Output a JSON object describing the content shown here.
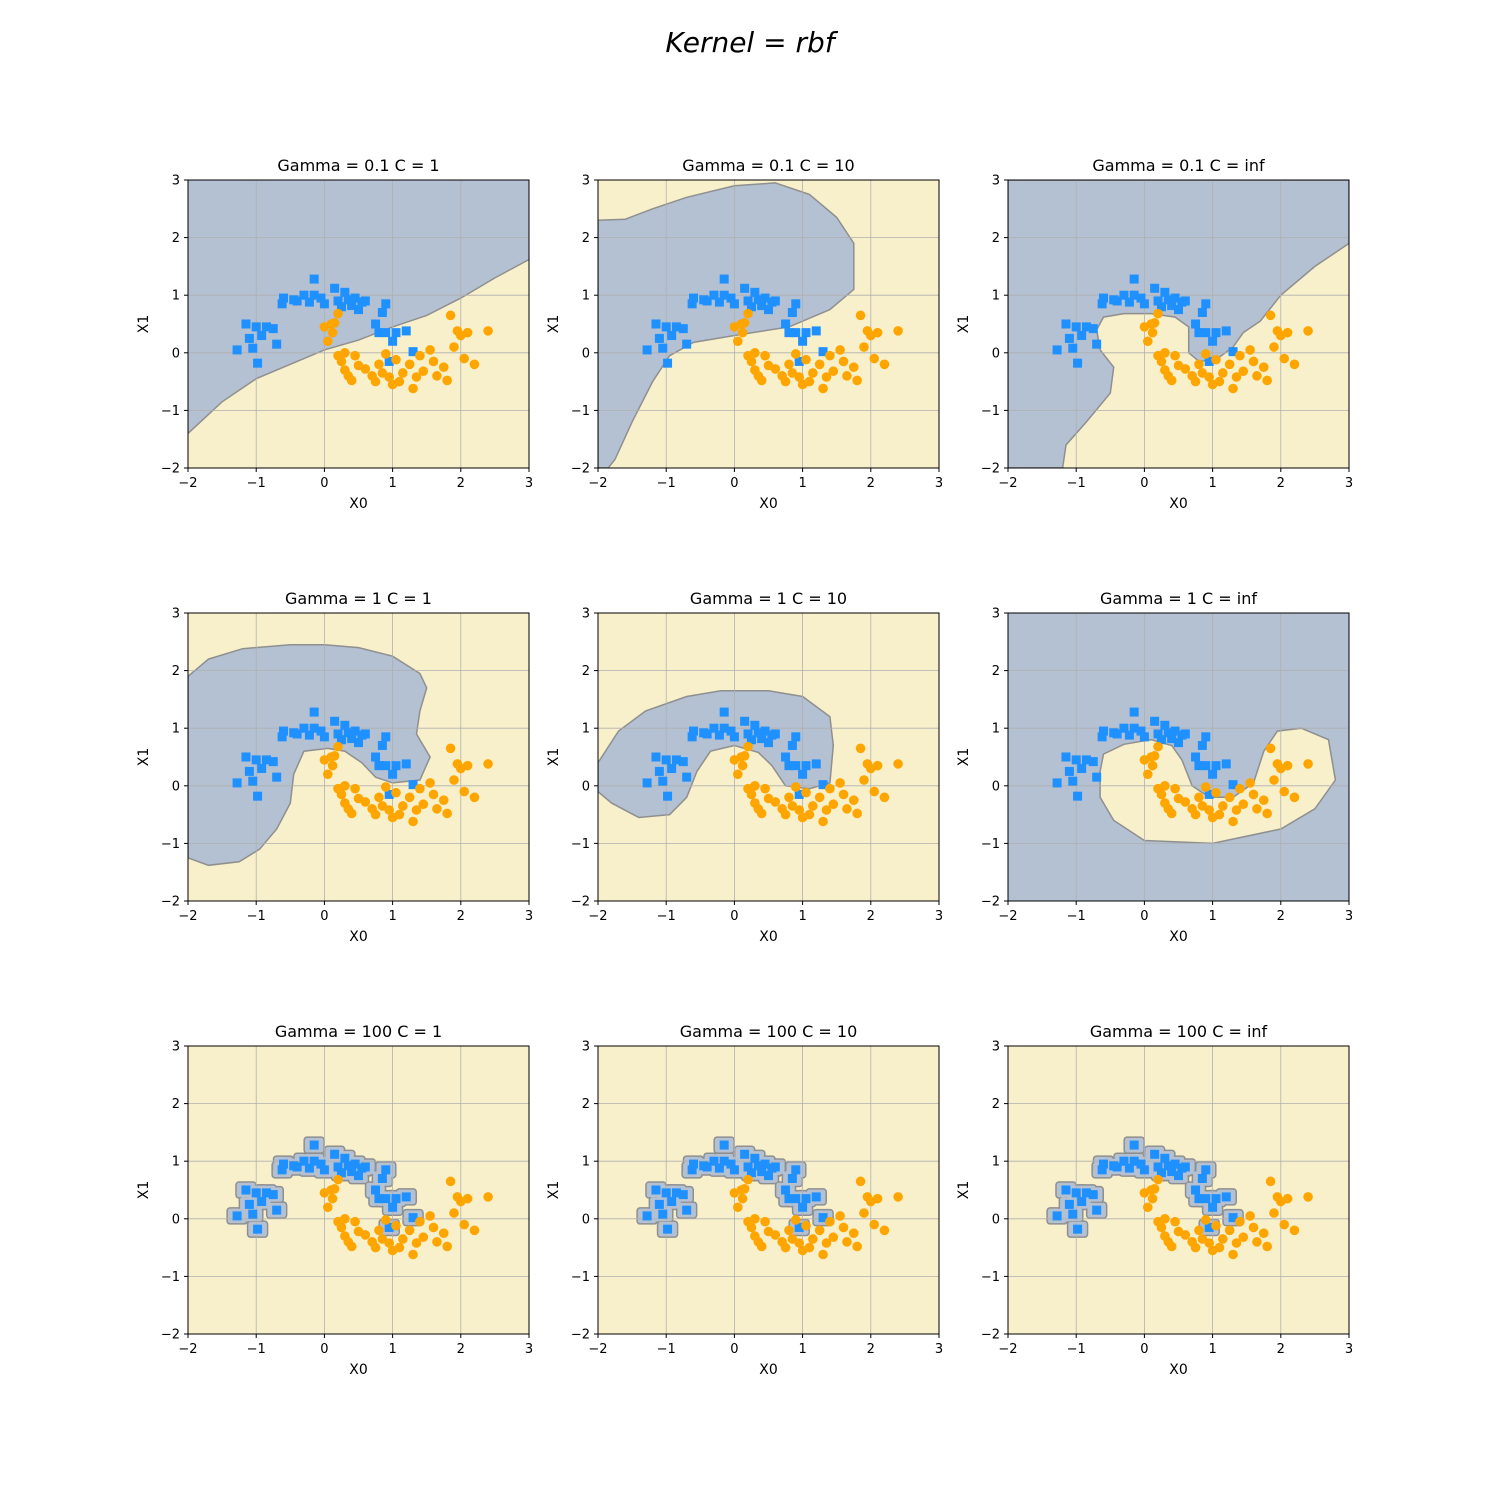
{
  "figure": {
    "suptitle": "Kernel = rbf"
  },
  "colors": {
    "class0_region": "#b3c1d3",
    "class1_region": "#f8f0ca",
    "boundary": "#8f8f8f",
    "class0_marker": "#1e90ff",
    "class1_marker": "#ffa500",
    "grid": "#b0b0b0"
  },
  "chart_data": [
    {
      "type": "scatter",
      "title": "Gamma = 0.1  C = 1",
      "xlabel": "X0",
      "ylabel": "X1",
      "xlim": [
        -2,
        3
      ],
      "ylim": [
        -2,
        3
      ],
      "xticks": [
        "−2",
        "−1",
        "0",
        "1",
        "2",
        "3"
      ],
      "yticks": [
        "−2",
        "−1",
        "0",
        "1",
        "2",
        "3"
      ],
      "grid": true,
      "boundary": [
        [
          -2,
          -1.4
        ],
        [
          -1.5,
          -0.85
        ],
        [
          -1,
          -0.45
        ],
        [
          -0.5,
          -0.2
        ],
        [
          0,
          0.05
        ],
        [
          0.5,
          0.22
        ],
        [
          1,
          0.45
        ],
        [
          1.5,
          0.65
        ],
        [
          2,
          0.95
        ],
        [
          2.5,
          1.3
        ],
        [
          3,
          1.62
        ]
      ]
    },
    {
      "type": "scatter",
      "title": "Gamma = 0.1  C = 10",
      "xlabel": "X0",
      "ylabel": "X1",
      "xlim": [
        -2,
        3
      ],
      "ylim": [
        -2,
        3
      ],
      "xticks": [
        "−2",
        "−1",
        "0",
        "1",
        "2",
        "3"
      ],
      "yticks": [
        "−2",
        "−1",
        "0",
        "1",
        "2",
        "3"
      ],
      "grid": true,
      "region": [
        [
          -2,
          -2
        ],
        [
          -2,
          2.3
        ],
        [
          -1.6,
          2.32
        ],
        [
          -1.2,
          2.5
        ],
        [
          -0.7,
          2.7
        ],
        [
          0,
          2.9
        ],
        [
          0.6,
          2.95
        ],
        [
          1.1,
          2.75
        ],
        [
          1.5,
          2.35
        ],
        [
          1.75,
          1.9
        ],
        [
          1.75,
          1.1
        ],
        [
          1.4,
          0.75
        ],
        [
          0.8,
          0.45
        ],
        [
          0,
          0.3
        ],
        [
          -0.6,
          0.18
        ],
        [
          -0.95,
          -0.05
        ],
        [
          -1.2,
          -0.5
        ],
        [
          -1.5,
          -1.2
        ],
        [
          -1.75,
          -1.85
        ],
        [
          -1.85,
          -2
        ]
      ]
    },
    {
      "type": "scatter",
      "title": "Gamma = 0.1  C = inf",
      "xlabel": "X0",
      "ylabel": "X1",
      "xlim": [
        -2,
        3
      ],
      "ylim": [
        -2,
        3
      ],
      "xticks": [
        "−2",
        "−1",
        "0",
        "1",
        "2",
        "3"
      ],
      "yticks": [
        "−2",
        "−1",
        "0",
        "1",
        "2",
        "3"
      ],
      "grid": true,
      "region": [
        [
          -2,
          -2
        ],
        [
          -2,
          3
        ],
        [
          3,
          3
        ],
        [
          3,
          1.9
        ],
        [
          2.5,
          1.5
        ],
        [
          2,
          1.0
        ],
        [
          1.7,
          0.55
        ],
        [
          1.45,
          0.35
        ],
        [
          1.3,
          0.1
        ],
        [
          1.05,
          -0.12
        ],
        [
          0.8,
          -0.15
        ],
        [
          0.65,
          0.0
        ],
        [
          0.65,
          0.45
        ],
        [
          0.45,
          0.62
        ],
        [
          0.1,
          0.68
        ],
        [
          -0.3,
          0.68
        ],
        [
          -0.6,
          0.62
        ],
        [
          -0.7,
          0.4
        ],
        [
          -0.65,
          0.05
        ],
        [
          -0.45,
          -0.25
        ],
        [
          -0.5,
          -0.7
        ],
        [
          -0.85,
          -1.2
        ],
        [
          -1.15,
          -1.6
        ],
        [
          -1.2,
          -2
        ]
      ]
    },
    {
      "type": "scatter",
      "title": "Gamma = 1  C = 1",
      "xlabel": "X0",
      "ylabel": "X1",
      "xlim": [
        -2,
        3
      ],
      "ylim": [
        -2,
        3
      ],
      "xticks": [
        "−2",
        "−1",
        "0",
        "1",
        "2",
        "3"
      ],
      "yticks": [
        "−2",
        "−1",
        "0",
        "1",
        "2",
        "3"
      ],
      "grid": true,
      "region": [
        [
          -2,
          1.9
        ],
        [
          -1.7,
          2.2
        ],
        [
          -1.2,
          2.38
        ],
        [
          -0.5,
          2.45
        ],
        [
          0,
          2.45
        ],
        [
          0.5,
          2.4
        ],
        [
          1.0,
          2.25
        ],
        [
          1.4,
          1.95
        ],
        [
          1.5,
          1.7
        ],
        [
          1.4,
          1.3
        ],
        [
          1.35,
          0.9
        ],
        [
          1.55,
          0.5
        ],
        [
          1.4,
          0.1
        ],
        [
          1.0,
          0.05
        ],
        [
          0.75,
          0.15
        ],
        [
          0.55,
          0.4
        ],
        [
          0.3,
          0.6
        ],
        [
          0.05,
          0.65
        ],
        [
          -0.3,
          0.6
        ],
        [
          -0.45,
          0.2
        ],
        [
          -0.5,
          -0.3
        ],
        [
          -0.7,
          -0.75
        ],
        [
          -0.95,
          -1.1
        ],
        [
          -1.25,
          -1.32
        ],
        [
          -1.7,
          -1.38
        ],
        [
          -2,
          -1.25
        ]
      ]
    },
    {
      "type": "scatter",
      "title": "Gamma = 1  C = 10",
      "xlabel": "X0",
      "ylabel": "X1",
      "xlim": [
        -2,
        3
      ],
      "ylim": [
        -2,
        3
      ],
      "xticks": [
        "−2",
        "−1",
        "0",
        "1",
        "2",
        "3"
      ],
      "yticks": [
        "−2",
        "−1",
        "0",
        "1",
        "2",
        "3"
      ],
      "grid": true,
      "region": [
        [
          -2,
          0.4
        ],
        [
          -1.7,
          0.95
        ],
        [
          -1.3,
          1.3
        ],
        [
          -0.7,
          1.55
        ],
        [
          -0.2,
          1.65
        ],
        [
          0.5,
          1.65
        ],
        [
          1.0,
          1.55
        ],
        [
          1.4,
          1.2
        ],
        [
          1.45,
          0.7
        ],
        [
          1.4,
          0.05
        ],
        [
          1.1,
          -0.05
        ],
        [
          0.75,
          0.0
        ],
        [
          0.55,
          0.35
        ],
        [
          0.35,
          0.58
        ],
        [
          0.0,
          0.7
        ],
        [
          -0.35,
          0.6
        ],
        [
          -0.55,
          0.25
        ],
        [
          -0.7,
          -0.2
        ],
        [
          -0.95,
          -0.5
        ],
        [
          -1.4,
          -0.55
        ],
        [
          -1.8,
          -0.3
        ],
        [
          -2,
          -0.1
        ]
      ]
    },
    {
      "type": "scatter",
      "title": "Gamma = 1  C = inf",
      "xlabel": "X0",
      "ylabel": "X1",
      "xlim": [
        -2,
        3
      ],
      "ylim": [
        -2,
        3
      ],
      "xticks": [
        "−2",
        "−1",
        "0",
        "1",
        "2",
        "3"
      ],
      "yticks": [
        "−2",
        "−1",
        "0",
        "1",
        "2",
        "3"
      ],
      "grid": true,
      "regionComplement": true,
      "region": [
        [
          -0.65,
          0.25
        ],
        [
          -0.6,
          0.55
        ],
        [
          -0.3,
          0.72
        ],
        [
          0.1,
          0.8
        ],
        [
          0.4,
          0.7
        ],
        [
          0.55,
          0.45
        ],
        [
          0.7,
          0.0
        ],
        [
          0.95,
          -0.2
        ],
        [
          1.3,
          -0.2
        ],
        [
          1.6,
          0.05
        ],
        [
          1.75,
          0.6
        ],
        [
          1.95,
          0.95
        ],
        [
          2.3,
          1.0
        ],
        [
          2.7,
          0.8
        ],
        [
          2.8,
          0.1
        ],
        [
          2.5,
          -0.4
        ],
        [
          2.0,
          -0.75
        ],
        [
          1.0,
          -1.0
        ],
        [
          0.0,
          -0.95
        ],
        [
          -0.45,
          -0.6
        ],
        [
          -0.65,
          -0.2
        ]
      ]
    },
    {
      "type": "scatter",
      "title": "Gamma = 100  C = 1",
      "xlabel": "X0",
      "ylabel": "X1",
      "xlim": [
        -2,
        3
      ],
      "ylim": [
        -2,
        3
      ],
      "xticks": [
        "−2",
        "−1",
        "0",
        "1",
        "2",
        "3"
      ],
      "yticks": [
        "−2",
        "−1",
        "0",
        "1",
        "2",
        "3"
      ],
      "grid": true,
      "islands": true
    },
    {
      "type": "scatter",
      "title": "Gamma = 100  C = 10",
      "xlabel": "X0",
      "ylabel": "X1",
      "xlim": [
        -2,
        3
      ],
      "ylim": [
        -2,
        3
      ],
      "xticks": [
        "−2",
        "−1",
        "0",
        "1",
        "2",
        "3"
      ],
      "yticks": [
        "−2",
        "−1",
        "0",
        "1",
        "2",
        "3"
      ],
      "grid": true,
      "islands": true
    },
    {
      "type": "scatter",
      "title": "Gamma = 100  C = inf",
      "xlabel": "X0",
      "ylabel": "X1",
      "xlim": [
        -2,
        3
      ],
      "ylim": [
        -2,
        3
      ],
      "xticks": [
        "−2",
        "−1",
        "0",
        "1",
        "2",
        "3"
      ],
      "yticks": [
        "−2",
        "−1",
        "0",
        "1",
        "2",
        "3"
      ],
      "grid": true,
      "islands": true
    }
  ],
  "points": {
    "class0": [
      [
        -1.28,
        0.05
      ],
      [
        -1.15,
        0.5
      ],
      [
        -1.1,
        0.25
      ],
      [
        -1.05,
        0.08
      ],
      [
        -1.0,
        0.45
      ],
      [
        -0.98,
        -0.18
      ],
      [
        -0.92,
        0.3
      ],
      [
        -0.85,
        0.45
      ],
      [
        -0.75,
        0.42
      ],
      [
        -0.7,
        0.15
      ],
      [
        -0.62,
        0.85
      ],
      [
        -0.6,
        0.95
      ],
      [
        -0.45,
        0.92
      ],
      [
        -0.4,
        0.9
      ],
      [
        -0.3,
        1.0
      ],
      [
        -0.22,
        0.88
      ],
      [
        -0.15,
        1.0
      ],
      [
        -0.15,
        1.28
      ],
      [
        -0.05,
        0.95
      ],
      [
        0.0,
        0.85
      ],
      [
        0.15,
        1.12
      ],
      [
        0.2,
        0.9
      ],
      [
        0.25,
        0.8
      ],
      [
        0.3,
        1.05
      ],
      [
        0.35,
        0.92
      ],
      [
        0.4,
        0.82
      ],
      [
        0.45,
        0.95
      ],
      [
        0.5,
        0.75
      ],
      [
        0.55,
        0.88
      ],
      [
        0.6,
        0.9
      ],
      [
        0.75,
        0.5
      ],
      [
        0.8,
        0.35
      ],
      [
        0.85,
        0.7
      ],
      [
        0.9,
        0.85
      ],
      [
        0.9,
        0.35
      ],
      [
        0.95,
        -0.15
      ],
      [
        1.0,
        0.2
      ],
      [
        1.05,
        0.35
      ],
      [
        1.2,
        0.38
      ],
      [
        1.3,
        0.02
      ]
    ],
    "class1": [
      [
        0.0,
        0.45
      ],
      [
        0.05,
        0.2
      ],
      [
        0.1,
        0.5
      ],
      [
        0.12,
        0.35
      ],
      [
        0.15,
        0.52
      ],
      [
        0.2,
        0.68
      ],
      [
        0.2,
        -0.05
      ],
      [
        0.25,
        -0.15
      ],
      [
        0.3,
        -0.3
      ],
      [
        0.3,
        0.0
      ],
      [
        0.35,
        -0.4
      ],
      [
        0.4,
        -0.48
      ],
      [
        0.45,
        -0.05
      ],
      [
        0.5,
        -0.22
      ],
      [
        0.6,
        -0.28
      ],
      [
        0.7,
        -0.4
      ],
      [
        0.75,
        -0.5
      ],
      [
        0.8,
        -0.2
      ],
      [
        0.85,
        -0.35
      ],
      [
        0.9,
        -0.02
      ],
      [
        0.95,
        -0.42
      ],
      [
        1.0,
        -0.55
      ],
      [
        1.05,
        -0.12
      ],
      [
        1.1,
        -0.5
      ],
      [
        1.15,
        -0.35
      ],
      [
        1.25,
        -0.2
      ],
      [
        1.3,
        -0.62
      ],
      [
        1.35,
        -0.42
      ],
      [
        1.4,
        -0.05
      ],
      [
        1.45,
        -0.32
      ],
      [
        1.55,
        0.05
      ],
      [
        1.6,
        -0.15
      ],
      [
        1.65,
        -0.4
      ],
      [
        1.75,
        -0.25
      ],
      [
        1.8,
        -0.48
      ],
      [
        1.85,
        0.65
      ],
      [
        1.9,
        0.1
      ],
      [
        1.95,
        0.38
      ],
      [
        2.0,
        0.3
      ],
      [
        2.05,
        -0.1
      ],
      [
        2.1,
        0.35
      ],
      [
        2.2,
        -0.2
      ],
      [
        2.4,
        0.38
      ]
    ]
  }
}
